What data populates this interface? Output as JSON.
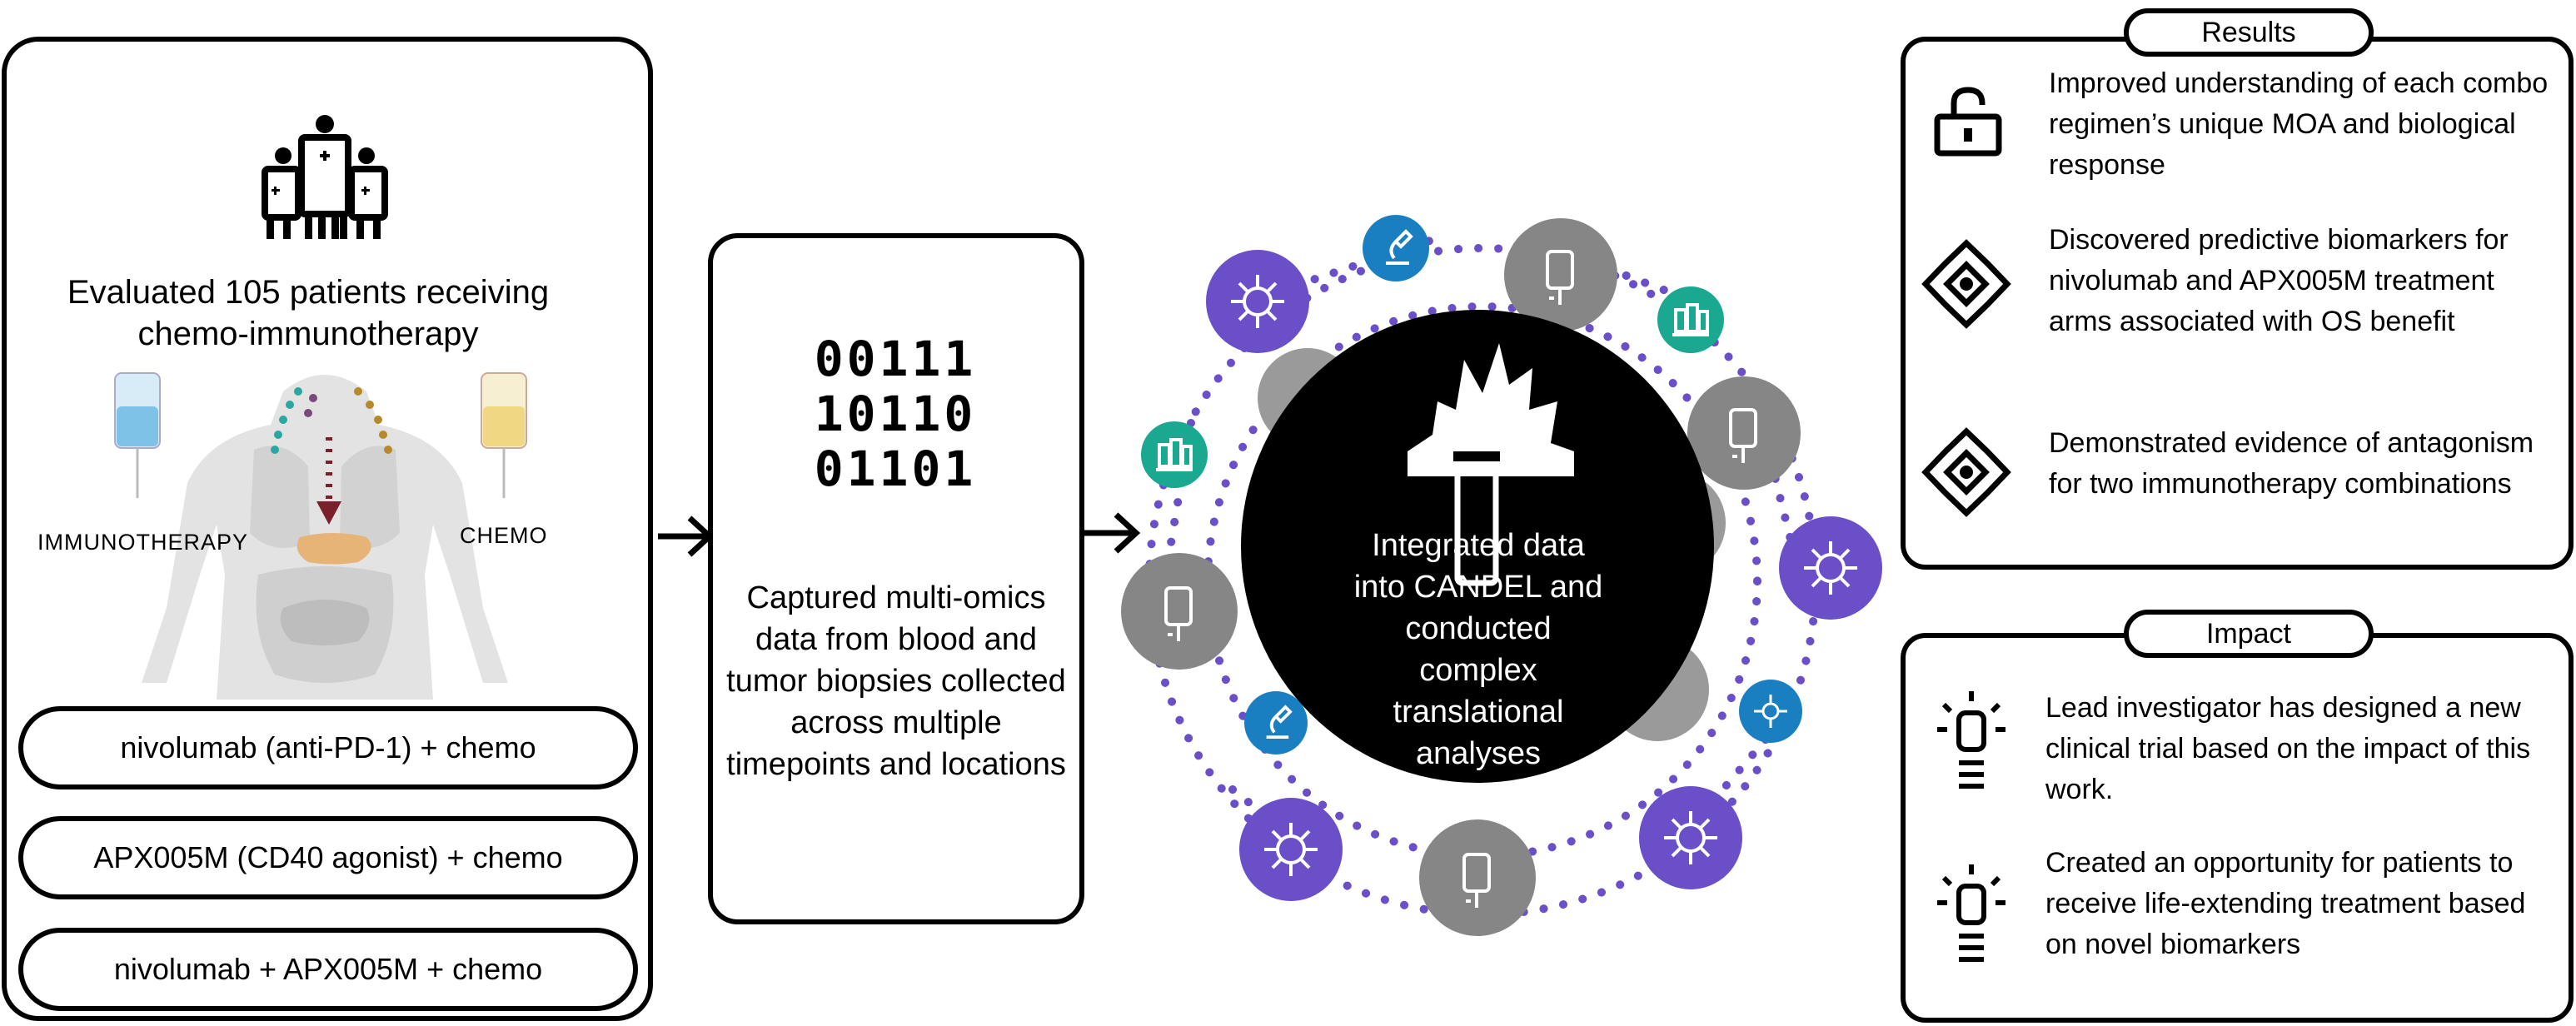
{
  "left": {
    "heading": "Evaluated 105 patients receiving chemo-immunotherapy",
    "label_left": "IMMUNOTHERAPY",
    "label_right": "CHEMO",
    "arms": [
      "nivolumab (anti-PD-1) + chemo",
      "APX005M (CD40 agonist) + chemo",
      "nivolumab + APX005M + chemo"
    ]
  },
  "middle": {
    "binary": [
      "00111",
      "10110",
      "01101"
    ],
    "caption": "Captured multi-omics data from blood and tumor biopsies collected across multiple timepoints and locations"
  },
  "hub": {
    "caption": "Integrated data into CANDEL and conducted complex translational analyses"
  },
  "results": {
    "title": "Results",
    "items": [
      {
        "icon": "padlock-icon",
        "text": "Improved understanding of each combo regimen’s unique MOA and biological response"
      },
      {
        "icon": "biomarker-network-icon",
        "text": "Discovered predictive biomarkers for nivolumab and APX005M treatment arms associated with OS benefit"
      },
      {
        "icon": "biomarker-network-icon",
        "text": "Demonstrated evidence of antagonism for two immunotherapy combinations"
      }
    ]
  },
  "impact": {
    "title": "Impact",
    "items": [
      {
        "icon": "lightbulb-icon",
        "text": "Lead investigator has designed a new clinical trial based on the impact of this work."
      },
      {
        "icon": "lightbulb-icon",
        "text": "Created an opportunity for patients to receive life-extending treatment based on novel biomarkers"
      }
    ]
  },
  "colors": {
    "purple": "#6a4fc8",
    "gray": "#7f7f7f",
    "blue": "#1a7fc1",
    "teal": "#1aa891",
    "dots": "#6a4fc8"
  }
}
